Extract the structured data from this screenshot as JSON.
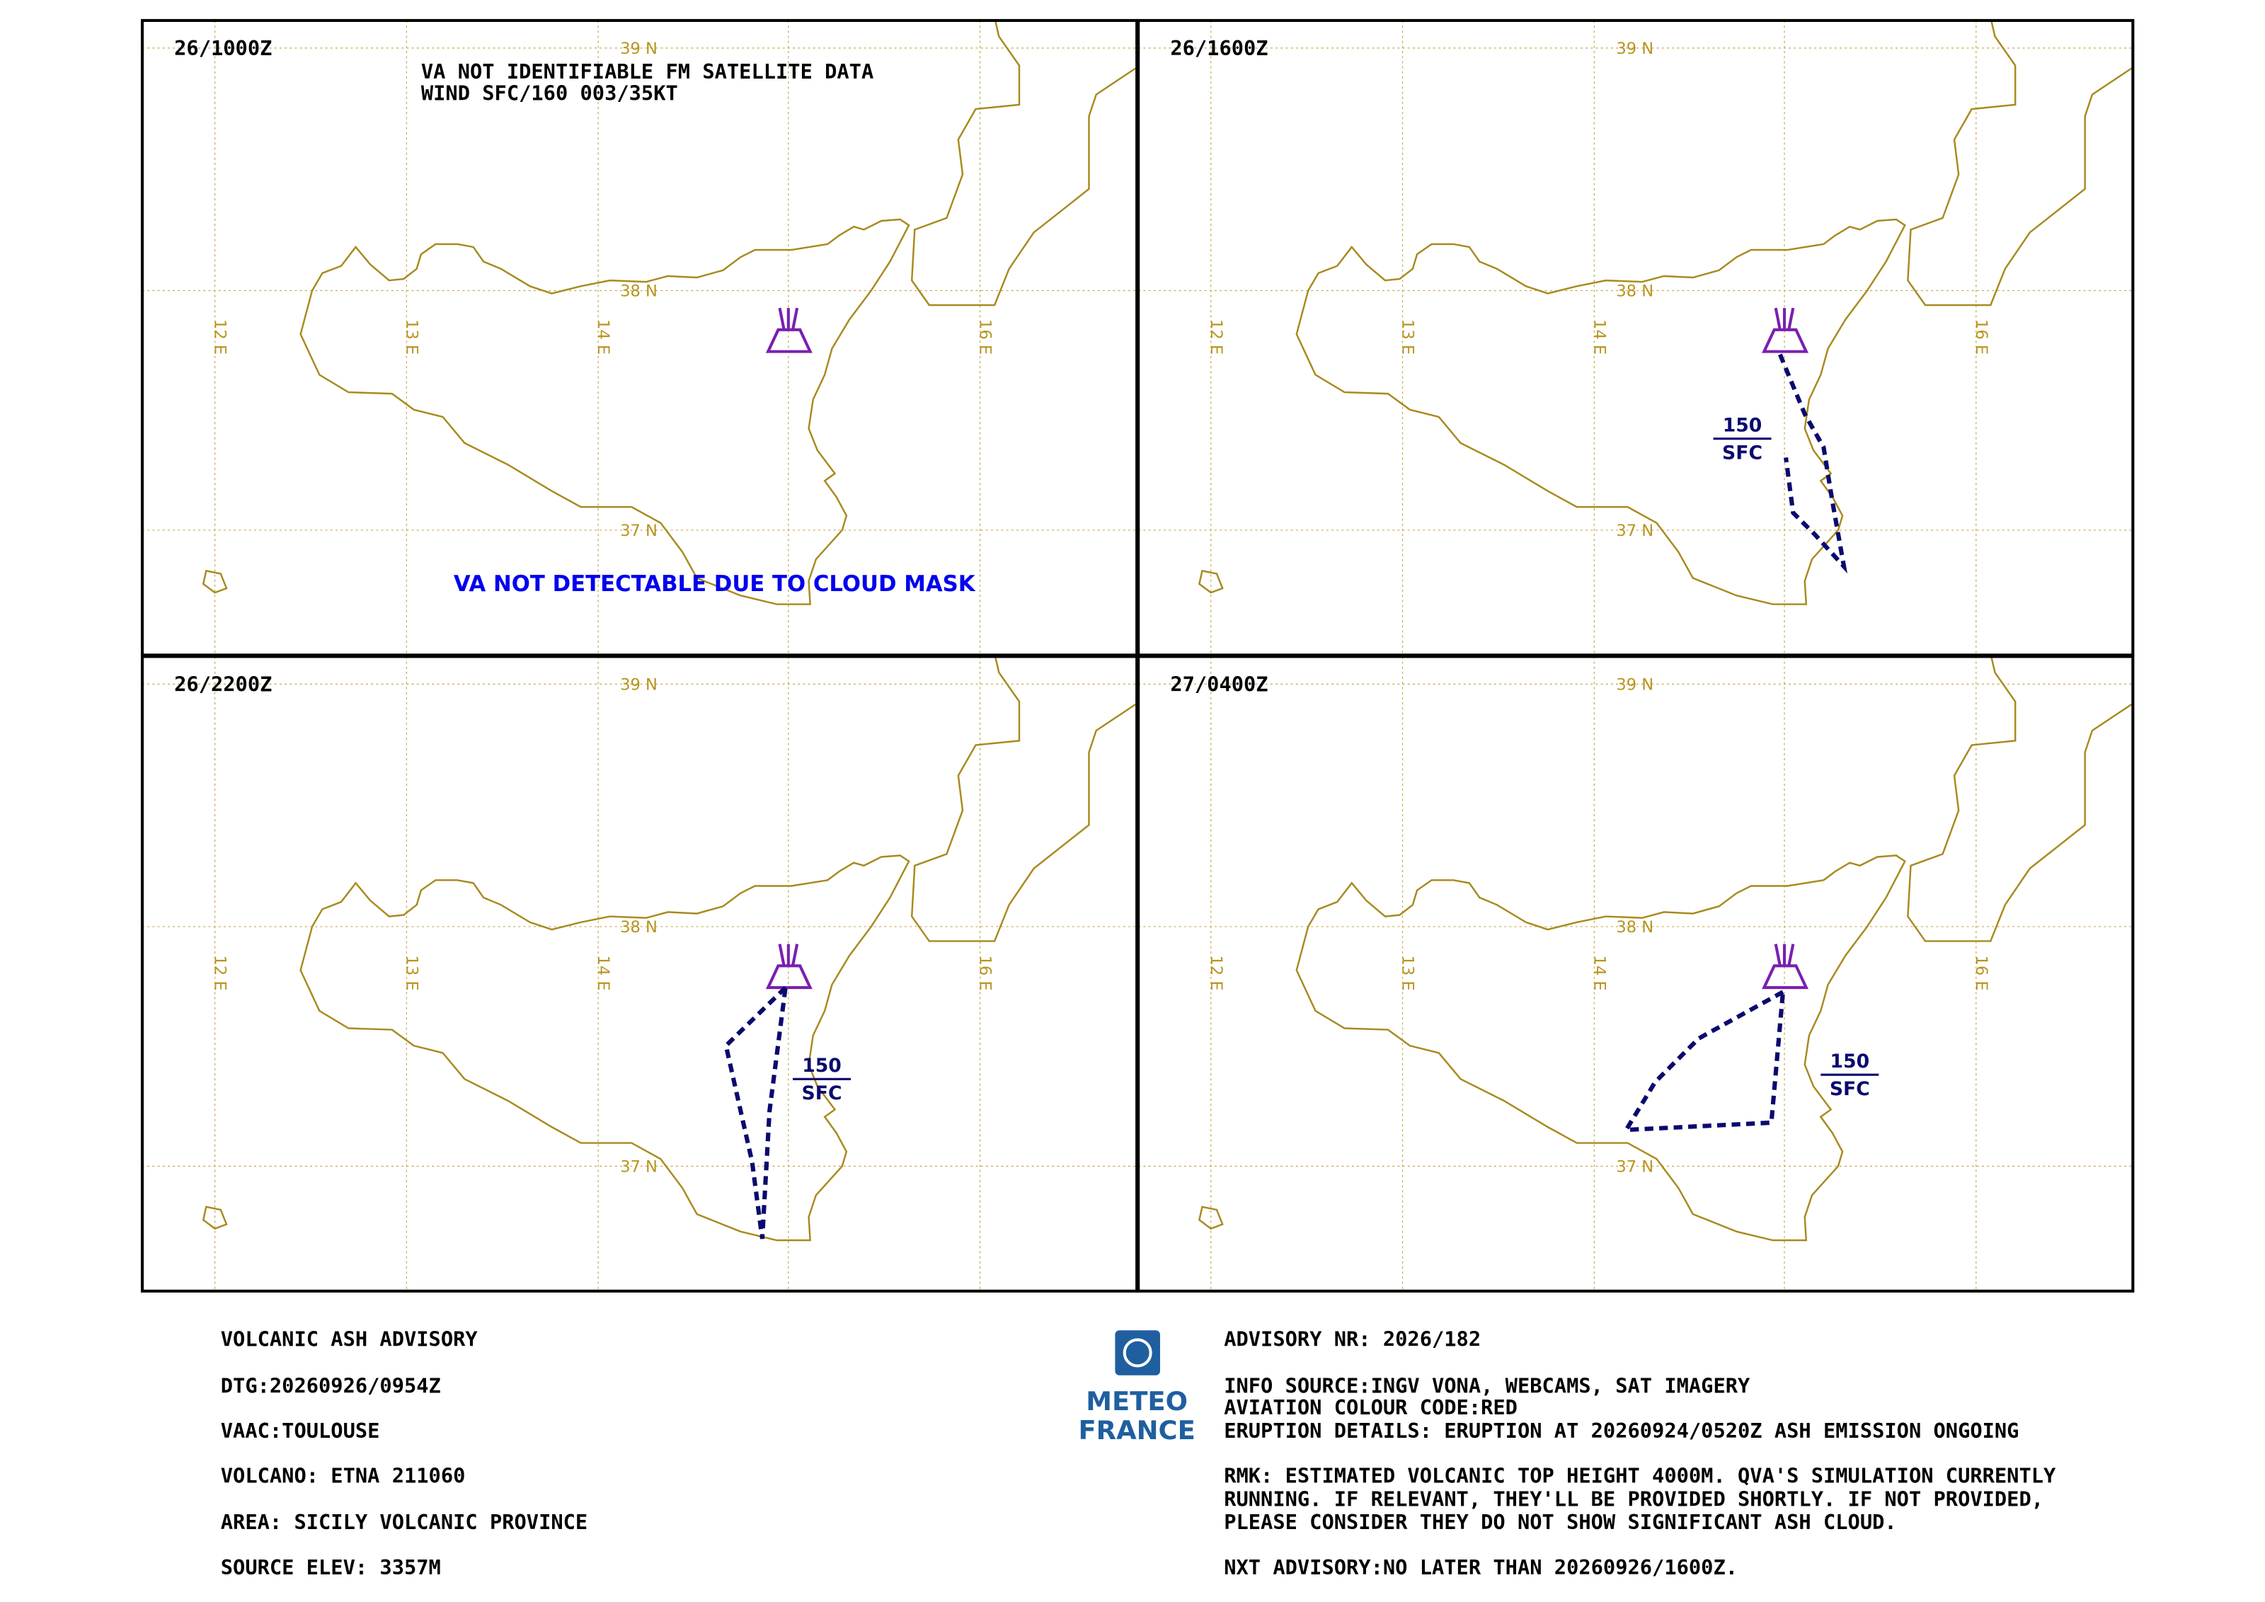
{
  "panels": [
    {
      "time": "26/1000Z",
      "notes": [
        "VA NOT IDENTIFIABLE FM SATELLITE DATA",
        "WIND SFC/160 003/35KT"
      ],
      "cloud_note": "VA NOT DETECTABLE DUE TO CLOUD MASK"
    },
    {
      "time": "26/1600Z",
      "top": "150",
      "base": "SFC"
    },
    {
      "time": "26/2200Z",
      "top": "150",
      "base": "SFC"
    },
    {
      "time": "27/0400Z",
      "top": "150",
      "base": "SFC"
    }
  ],
  "grid": {
    "lat_labels": [
      "39 N",
      "38 N",
      "37 N"
    ],
    "lon_labels": [
      "12 E",
      "13 E",
      "14 E",
      "16 E"
    ]
  },
  "footer": {
    "left": [
      "VOLCANIC ASH ADVISORY",
      "DTG:20260926/0954Z",
      "VAAC:TOULOUSE",
      "VOLCANO: ETNA 211060",
      "AREA: SICILY VOLCANIC PROVINCE",
      "SOURCE ELEV: 3357M"
    ],
    "logo": [
      "METEO",
      "FRANCE"
    ],
    "right": [
      "ADVISORY NR: 2026/182",
      "INFO SOURCE:INGV VONA, WEBCAMS, SAT IMAGERY",
      "AVIATION COLOUR CODE:RED",
      "ERUPTION DETAILS: ERUPTION AT 20260924/0520Z ASH EMISSION ONGOING",
      "RMK: ESTIMATED VOLCANIC TOP HEIGHT 4000M. QVA'S SIMULATION CURRENTLY",
      "RUNNING. IF RELEVANT, THEY'LL BE PROVIDED SHORTLY. IF NOT  PROVIDED,",
      "PLEASE CONSIDER  THEY DO NOT SHOW SIGNIFICANT  ASH CLOUD.",
      "NXT ADVISORY:NO LATER THAN 20260926/1600Z."
    ]
  }
}
